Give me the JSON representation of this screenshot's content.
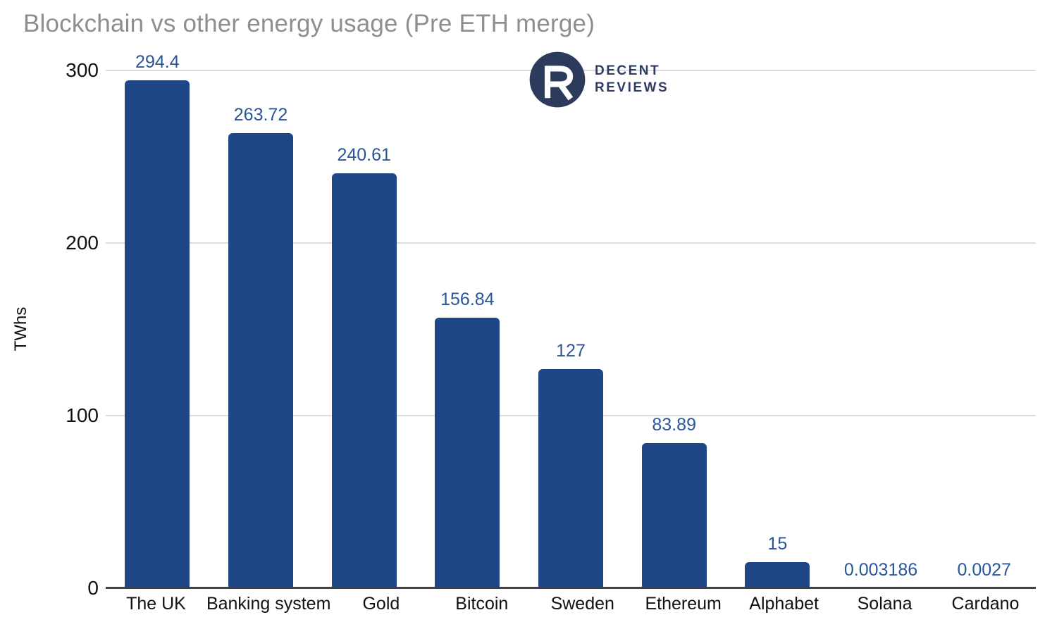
{
  "title": "Blockchain vs other energy usage (Pre ETH merge)",
  "logo": {
    "line1": "DECENT",
    "line2": "REVIEWS",
    "circle_color": "#2c3a5c",
    "letter_color": "#ffffff",
    "text_color": "#2e3d63"
  },
  "chart_data": {
    "type": "bar",
    "title": "Blockchain vs other energy usage (Pre ETH merge)",
    "categories": [
      "The UK",
      "Banking system",
      "Gold",
      "Bitcoin",
      "Sweden",
      "Ethereum",
      "Alphabet",
      "Solana",
      "Cardano"
    ],
    "values": [
      294.4,
      263.72,
      240.61,
      156.84,
      127,
      83.89,
      15,
      0.003186,
      0.0027
    ],
    "value_labels": [
      "294.4",
      "263.72",
      "240.61",
      "156.84",
      "127",
      "83.89",
      "15",
      "0.003186",
      "0.0027"
    ],
    "xlabel": "",
    "ylabel": "TWhs",
    "ylim": [
      0,
      300
    ],
    "yticks": [
      0,
      100,
      200,
      300
    ],
    "grid": "horizontal",
    "legend": "none",
    "bar_color": "#1f4788",
    "value_label_color": "#2a5699",
    "gridline_color": "#dcdcdc",
    "baseline_color": "#424242",
    "title_color": "#8e8e8e",
    "axis_text_color": "#111111"
  }
}
